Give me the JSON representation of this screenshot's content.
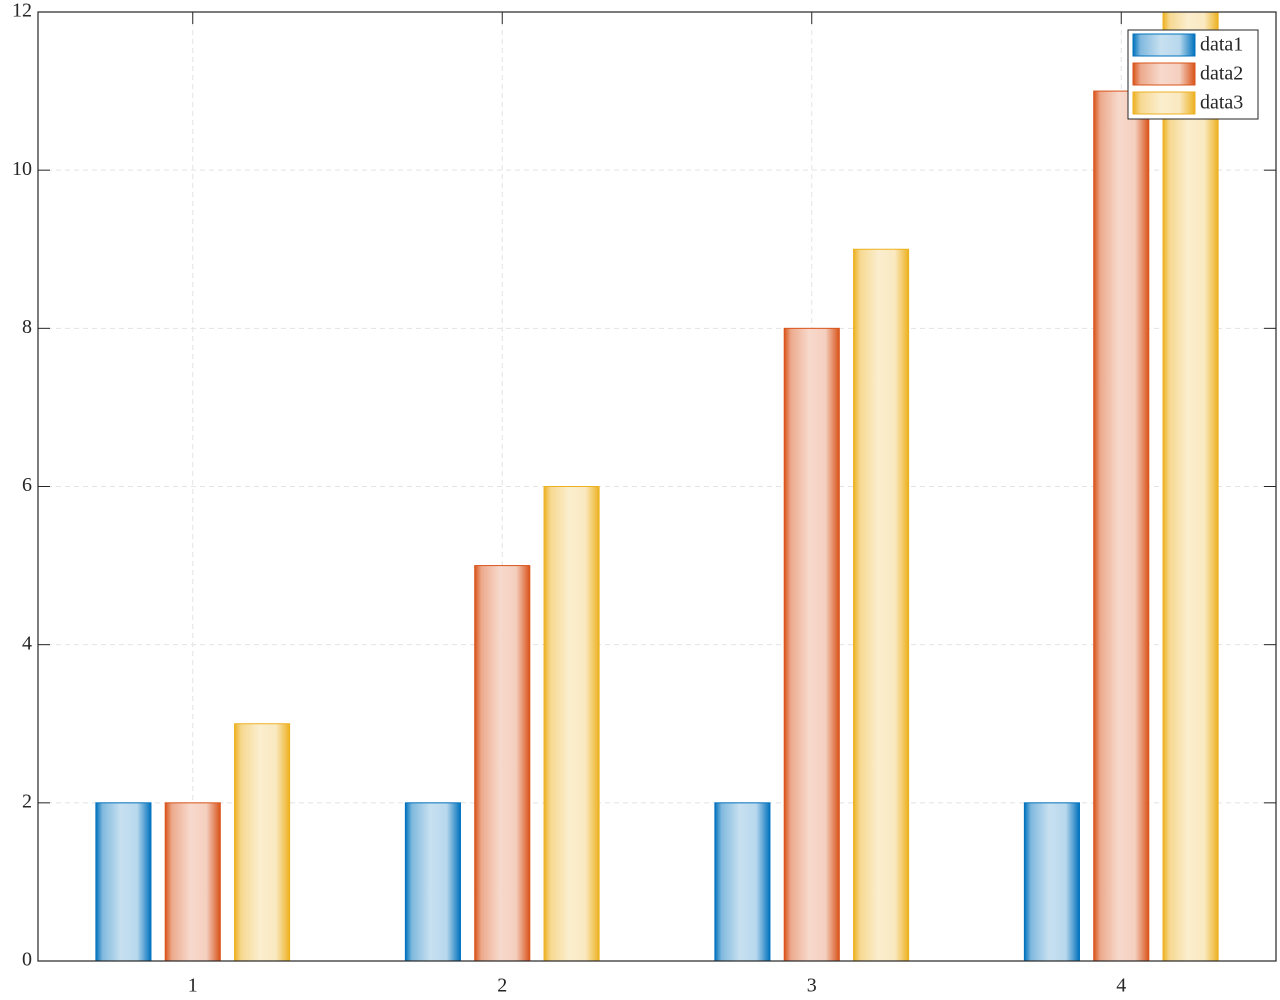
{
  "chart_data": {
    "type": "bar",
    "categories": [
      "1",
      "2",
      "3",
      "4"
    ],
    "series": [
      {
        "name": "data1",
        "color": "#0072bd",
        "values": [
          2,
          2,
          2,
          2
        ]
      },
      {
        "name": "data2",
        "color": "#d95319",
        "values": [
          2,
          5,
          8,
          11
        ]
      },
      {
        "name": "data3",
        "color": "#edb120",
        "values": [
          3,
          6,
          9,
          12
        ]
      }
    ],
    "ylim": [
      0,
      12
    ],
    "yticks": [
      0,
      2,
      4,
      6,
      8,
      10,
      12
    ],
    "grid": true,
    "legend": "top-right"
  }
}
